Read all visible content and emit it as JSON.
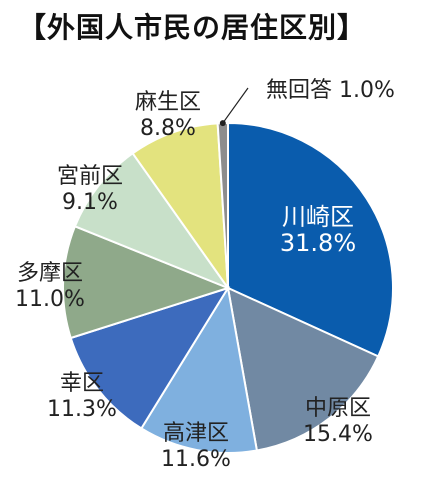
{
  "title": "【外国人市民の居住区別】",
  "chart_data": {
    "type": "pie",
    "title": "【外国人市民の居住区別】",
    "unit": "%",
    "slices": [
      {
        "name": "川崎区",
        "value": 31.8,
        "label": "31.8%",
        "color": "#0a5cad"
      },
      {
        "name": "中原区",
        "value": 15.4,
        "label": "15.4%",
        "color": "#7189a3"
      },
      {
        "name": "高津区",
        "value": 11.6,
        "label": "11.6%",
        "color": "#7fb0df"
      },
      {
        "name": "幸区",
        "value": 11.3,
        "label": "11.3%",
        "color": "#3d6bbd"
      },
      {
        "name": "多摩区",
        "value": 11.0,
        "label": "11.0%",
        "color": "#8fa98a"
      },
      {
        "name": "宮前区",
        "value": 9.1,
        "label": "9.1%",
        "color": "#c8e0c9"
      },
      {
        "name": "麻生区",
        "value": 8.8,
        "label": "8.8%",
        "color": "#e3e37e"
      },
      {
        "name": "無回答",
        "value": 1.0,
        "label": "1.0%",
        "color": "#8d8d8d"
      }
    ],
    "start_angle_deg": 0,
    "direction": "clockwise"
  }
}
